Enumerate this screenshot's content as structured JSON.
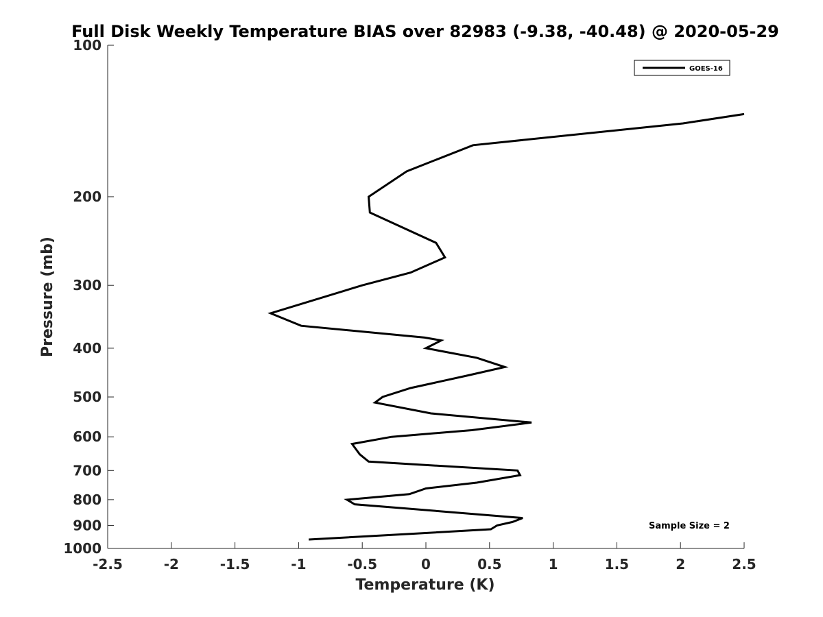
{
  "chart_data": {
    "type": "line",
    "title": "Full Disk Weekly Temperature BIAS over 82983 (-9.38, -40.48) @ 2020-05-29",
    "xlabel": "Temperature (K)",
    "ylabel": "Pressure (mb)",
    "xlim": [
      -2.5,
      2.5
    ],
    "ylim": [
      100,
      1000
    ],
    "y_scale": "log",
    "y_reversed": true,
    "xticks": [
      -2.5,
      -2,
      -1.5,
      -1,
      -0.5,
      0,
      0.5,
      1,
      1.5,
      2,
      2.5
    ],
    "xtick_labels": [
      "-2.5",
      "-2",
      "-1.5",
      "-1",
      "-0.5",
      "0",
      "0.5",
      "1",
      "1.5",
      "2",
      "2.5"
    ],
    "yticks": [
      100,
      200,
      300,
      400,
      500,
      600,
      700,
      800,
      900,
      1000
    ],
    "ytick_labels": [
      "100",
      "200",
      "300",
      "400",
      "500",
      "600",
      "700",
      "800",
      "900",
      "1000"
    ],
    "grid": false,
    "legend_position": "top-right",
    "line_color": "#000000",
    "series": [
      {
        "name": "GOES-16",
        "points": [
          {
            "x": 2.5,
            "y": 137
          },
          {
            "x": 2.02,
            "y": 143
          },
          {
            "x": 0.37,
            "y": 158
          },
          {
            "x": -0.15,
            "y": 178
          },
          {
            "x": -0.45,
            "y": 200
          },
          {
            "x": -0.44,
            "y": 215
          },
          {
            "x": 0.08,
            "y": 247
          },
          {
            "x": 0.15,
            "y": 264
          },
          {
            "x": -0.12,
            "y": 283
          },
          {
            "x": -0.5,
            "y": 300
          },
          {
            "x": -1.22,
            "y": 341
          },
          {
            "x": -0.98,
            "y": 361
          },
          {
            "x": -0.01,
            "y": 381
          },
          {
            "x": 0.12,
            "y": 386
          },
          {
            "x": 0.0,
            "y": 400
          },
          {
            "x": 0.4,
            "y": 418
          },
          {
            "x": 0.62,
            "y": 436
          },
          {
            "x": 0.33,
            "y": 453
          },
          {
            "x": -0.12,
            "y": 480
          },
          {
            "x": -0.34,
            "y": 500
          },
          {
            "x": -0.4,
            "y": 513
          },
          {
            "x": 0.04,
            "y": 539
          },
          {
            "x": 0.83,
            "y": 562
          },
          {
            "x": 0.36,
            "y": 582
          },
          {
            "x": -0.27,
            "y": 600
          },
          {
            "x": -0.58,
            "y": 620
          },
          {
            "x": -0.52,
            "y": 650
          },
          {
            "x": -0.45,
            "y": 672
          },
          {
            "x": 0.72,
            "y": 700
          },
          {
            "x": 0.74,
            "y": 715
          },
          {
            "x": 0.4,
            "y": 740
          },
          {
            "x": 0.0,
            "y": 760
          },
          {
            "x": -0.13,
            "y": 780
          },
          {
            "x": -0.62,
            "y": 800
          },
          {
            "x": -0.56,
            "y": 817
          },
          {
            "x": 0.76,
            "y": 870
          },
          {
            "x": 0.68,
            "y": 886
          },
          {
            "x": 0.56,
            "y": 900
          },
          {
            "x": 0.51,
            "y": 916
          },
          {
            "x": -0.11,
            "y": 935
          },
          {
            "x": -0.92,
            "y": 960
          }
        ]
      }
    ],
    "annotation": "Sample Size = 2"
  }
}
